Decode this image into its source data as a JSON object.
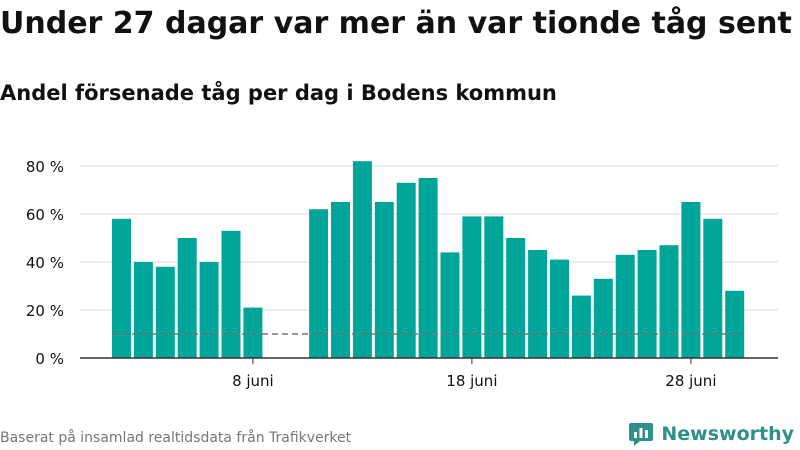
{
  "header": {
    "title": "Under 27 dagar var mer än var tionde tåg sent",
    "subtitle": "Andel försenade tåg per dag i Bodens kommun"
  },
  "footer": {
    "source": "Baserat på insamlad realtidsdata från Trafikverket",
    "brand": "Newsworthy",
    "logo_icon": "newsworthy-logo-icon"
  },
  "colors": {
    "bar": "#00a59a",
    "grid": "#dddddd",
    "reference": "#777777",
    "text": "#111111",
    "muted": "#777777",
    "brand": "#2f8f8a"
  },
  "chart_data": {
    "type": "bar",
    "x": [
      "2 juni",
      "3 juni",
      "4 juni",
      "5 juni",
      "6 juni",
      "7 juni",
      "8 juni",
      "9 juni",
      "10 juni",
      "11 juni",
      "12 juni",
      "13 juni",
      "14 juni",
      "15 juni",
      "16 juni",
      "17 juni",
      "18 juni",
      "19 juni",
      "20 juni",
      "21 juni",
      "22 juni",
      "23 juni",
      "24 juni",
      "25 juni",
      "26 juni",
      "27 juni",
      "28 juni",
      "29 juni",
      "30 juni"
    ],
    "values": [
      58,
      40,
      38,
      50,
      40,
      53,
      21,
      null,
      null,
      62,
      65,
      82,
      65,
      73,
      75,
      44,
      59,
      59,
      50,
      45,
      41,
      26,
      33,
      43,
      45,
      47,
      65,
      58,
      28
    ],
    "yticks": [
      0,
      20,
      40,
      60,
      80
    ],
    "ytick_labels": [
      "0 %",
      "20 %",
      "40 %",
      "60 %",
      "80 %"
    ],
    "xticks": [
      "8 juni",
      "18 juni",
      "28 juni"
    ],
    "ylim": [
      0,
      90
    ],
    "reference_line": {
      "value": 10,
      "style": "dashed"
    },
    "grid": "horizontal",
    "legend": "none"
  }
}
